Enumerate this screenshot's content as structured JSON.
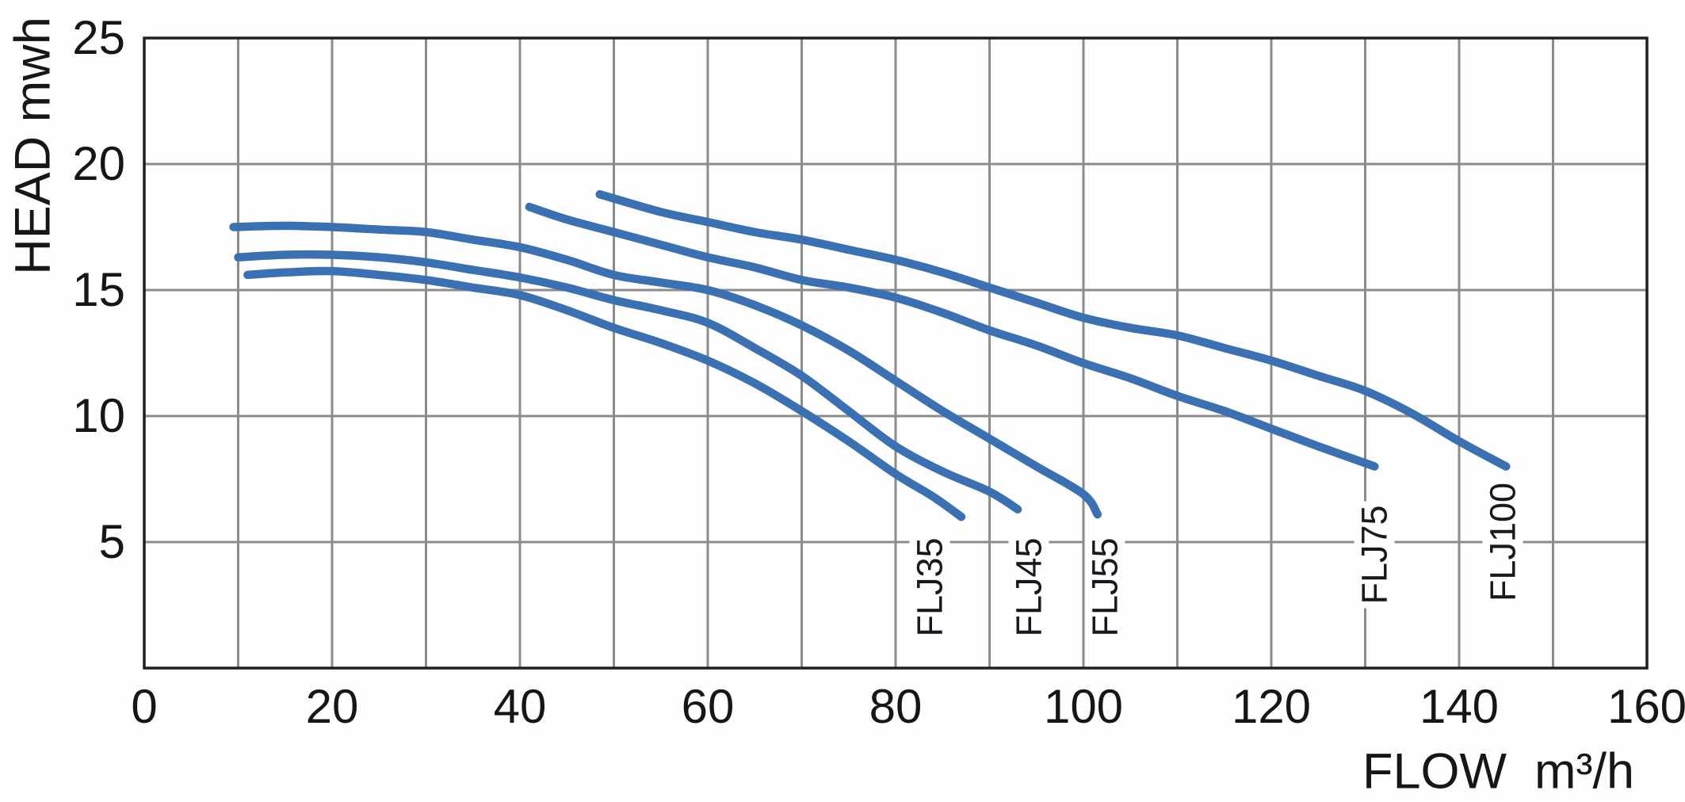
{
  "chart_data": {
    "type": "line",
    "title": "",
    "xlabel": "FLOW  m³/h",
    "ylabel": "HEAD mwh",
    "xlim": [
      0,
      160
    ],
    "ylim": [
      0,
      25
    ],
    "x_ticks": [
      0,
      20,
      40,
      60,
      80,
      100,
      120,
      140,
      160
    ],
    "y_ticks": [
      5,
      10,
      15,
      20,
      25
    ],
    "x_grid_step": 10,
    "y_grid_step": 5,
    "grid": true,
    "legend_position": "labels-on-plot",
    "colors": {
      "curve": "#3b70b2",
      "grid": "#8c8c8c",
      "axis": "#1f1f1f",
      "text": "#161616"
    },
    "series": [
      {
        "name": "FLJ35",
        "label_pos": {
          "x": 83.6,
          "y": 3.2
        },
        "points": [
          [
            11,
            15.6
          ],
          [
            15,
            15.7
          ],
          [
            20,
            15.75
          ],
          [
            25,
            15.6
          ],
          [
            30,
            15.4
          ],
          [
            35,
            15.1
          ],
          [
            40,
            14.8
          ],
          [
            45,
            14.2
          ],
          [
            50,
            13.5
          ],
          [
            55,
            12.9
          ],
          [
            60,
            12.2
          ],
          [
            65,
            11.3
          ],
          [
            70,
            10.2
          ],
          [
            75,
            9.0
          ],
          [
            80,
            7.7
          ],
          [
            84,
            6.8
          ],
          [
            87,
            6.0
          ]
        ]
      },
      {
        "name": "FLJ45",
        "label_pos": {
          "x": 94.2,
          "y": 3.2
        },
        "points": [
          [
            10,
            16.3
          ],
          [
            15,
            16.4
          ],
          [
            20,
            16.4
          ],
          [
            25,
            16.3
          ],
          [
            30,
            16.1
          ],
          [
            35,
            15.8
          ],
          [
            40,
            15.5
          ],
          [
            45,
            15.1
          ],
          [
            50,
            14.6
          ],
          [
            55,
            14.2
          ],
          [
            60,
            13.7
          ],
          [
            65,
            12.7
          ],
          [
            70,
            11.6
          ],
          [
            75,
            10.2
          ],
          [
            80,
            8.8
          ],
          [
            85,
            7.8
          ],
          [
            90,
            7.0
          ],
          [
            93,
            6.3
          ]
        ]
      },
      {
        "name": "FLJ55",
        "label_pos": {
          "x": 102.3,
          "y": 3.2
        },
        "points": [
          [
            9.5,
            17.5
          ],
          [
            15,
            17.55
          ],
          [
            20,
            17.5
          ],
          [
            25,
            17.4
          ],
          [
            30,
            17.3
          ],
          [
            35,
            17.0
          ],
          [
            40,
            16.7
          ],
          [
            45,
            16.2
          ],
          [
            50,
            15.6
          ],
          [
            55,
            15.3
          ],
          [
            60,
            15.0
          ],
          [
            65,
            14.4
          ],
          [
            70,
            13.6
          ],
          [
            75,
            12.6
          ],
          [
            80,
            11.4
          ],
          [
            85,
            10.2
          ],
          [
            90,
            9.1
          ],
          [
            95,
            8.0
          ],
          [
            100,
            6.9
          ],
          [
            101.5,
            6.1
          ]
        ]
      },
      {
        "name": "FLJ75",
        "label_pos": {
          "x": 131.0,
          "y": 4.5
        },
        "points": [
          [
            41,
            18.3
          ],
          [
            45,
            17.8
          ],
          [
            50,
            17.3
          ],
          [
            55,
            16.8
          ],
          [
            60,
            16.3
          ],
          [
            65,
            15.9
          ],
          [
            70,
            15.4
          ],
          [
            75,
            15.1
          ],
          [
            80,
            14.7
          ],
          [
            85,
            14.1
          ],
          [
            90,
            13.4
          ],
          [
            95,
            12.8
          ],
          [
            100,
            12.1
          ],
          [
            105,
            11.5
          ],
          [
            110,
            10.8
          ],
          [
            115,
            10.2
          ],
          [
            120,
            9.5
          ],
          [
            125,
            8.8
          ],
          [
            131,
            8.0
          ]
        ]
      },
      {
        "name": "FLJ100",
        "label_pos": {
          "x": 144.6,
          "y": 5.0
        },
        "points": [
          [
            48.5,
            18.8
          ],
          [
            55,
            18.1
          ],
          [
            60,
            17.7
          ],
          [
            65,
            17.3
          ],
          [
            70,
            17.0
          ],
          [
            75,
            16.6
          ],
          [
            80,
            16.2
          ],
          [
            85,
            15.7
          ],
          [
            90,
            15.1
          ],
          [
            95,
            14.5
          ],
          [
            100,
            13.9
          ],
          [
            105,
            13.5
          ],
          [
            110,
            13.2
          ],
          [
            115,
            12.7
          ],
          [
            120,
            12.2
          ],
          [
            125,
            11.6
          ],
          [
            130,
            11.0
          ],
          [
            135,
            10.1
          ],
          [
            140,
            9.0
          ],
          [
            145,
            8.0
          ]
        ]
      }
    ]
  }
}
